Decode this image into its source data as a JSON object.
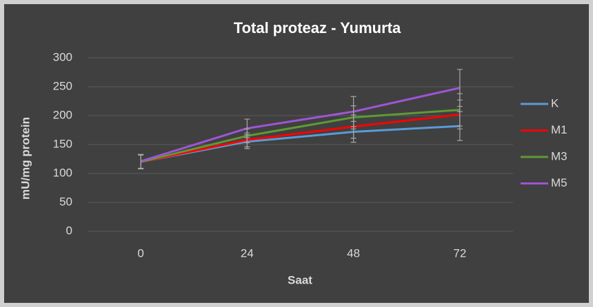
{
  "chart_data": {
    "type": "line",
    "title": "Total proteaz - Yumurta",
    "x_label": "Saat",
    "y_label": "mU/mg protein",
    "categories": [
      "0",
      "24",
      "48",
      "72"
    ],
    "series": [
      {
        "name": "K",
        "color": "#5b9bd5",
        "values": [
          120,
          155,
          172,
          182
        ],
        "errors": [
          12,
          12,
          18,
          25
        ]
      },
      {
        "name": "M1",
        "color": "#ff0000",
        "values": [
          120,
          158,
          181,
          202
        ],
        "errors": [
          12,
          12,
          20,
          25
        ]
      },
      {
        "name": "M3",
        "color": "#5f9a35",
        "values": [
          120,
          165,
          197,
          210
        ],
        "errors": [
          12,
          12,
          20,
          28
        ]
      },
      {
        "name": "M5",
        "color": "#9e55d6",
        "values": [
          121,
          178,
          207,
          248
        ],
        "errors": [
          12,
          16,
          26,
          32
        ]
      }
    ],
    "ylim": [
      0,
      300
    ],
    "yticks": [
      0,
      50,
      100,
      150,
      200,
      250,
      300
    ],
    "grid": true,
    "legend": "right",
    "error_bar_color": "#a6a6a6"
  }
}
